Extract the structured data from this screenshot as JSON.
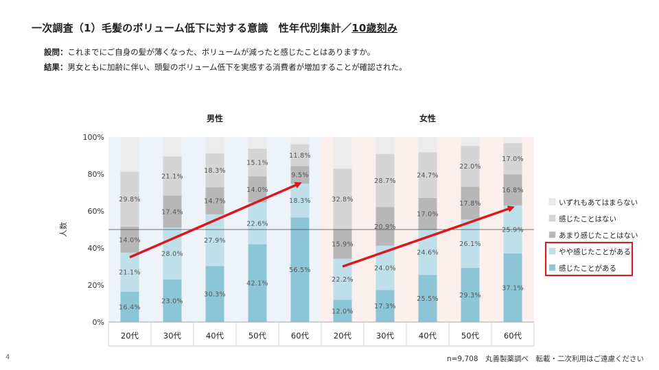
{
  "header": {
    "title_main": "一次調査（1）毛髪のボリューム低下に対する意識　性年代別集計／",
    "title_underlined": "10歳刻み"
  },
  "question": {
    "q_label": "設問：",
    "q_text": "これまでにご自身の髪が薄くなった、ボリュームが減ったと感じたことはありますか。",
    "r_label": "結果：",
    "r_text": "男女ともに加齢に伴い、頭髪のボリューム低下を実感する消費者が増加することが確認された。"
  },
  "footer": {
    "page_number": "4",
    "source": "n=9,708　丸善製薬調べ　転載・二次利用はご遠慮ください"
  },
  "colors": {
    "s1": "#8cc5d6",
    "s2": "#bfe0ea",
    "s3": "#b7b7b7",
    "s4": "#d5d5d5",
    "s5": "#ececec",
    "male_bg": "#edf3f9",
    "female_bg": "#fbf0ee",
    "arrow": "#d9191e",
    "highlight": "#c8232b"
  },
  "chart_data": {
    "type": "bar",
    "stacked": true,
    "y_axis_label": "人数",
    "ylim": [
      0,
      100
    ],
    "y_ticks": [
      "0%",
      "20%",
      "40%",
      "60%",
      "80%",
      "100%"
    ],
    "groups": [
      "男性",
      "女性"
    ],
    "categories": [
      "20代",
      "30代",
      "40代",
      "50代",
      "60代",
      "20代",
      "30代",
      "40代",
      "50代",
      "60代"
    ],
    "reference_line": 50,
    "series": [
      {
        "name": "感じたことがある",
        "values": [
          16.4,
          23.0,
          30.3,
          42.1,
          56.5,
          12.0,
          17.3,
          25.5,
          29.3,
          37.1
        ],
        "labels": [
          "16.4%",
          "23.0%",
          "30.3%",
          "42.1%",
          "56.5%",
          "12.0%",
          "17.3%",
          "25.5%",
          "29.3%",
          "37.1%"
        ]
      },
      {
        "name": "やや感じたことがある",
        "values": [
          21.1,
          28.0,
          27.9,
          22.6,
          18.3,
          22.2,
          24.0,
          24.6,
          26.1,
          25.9
        ],
        "labels": [
          "21.1%",
          "28.0%",
          "27.9%",
          "22.6%",
          "18.3%",
          "22.2%",
          "24.0%",
          "24.6%",
          "26.1%",
          "25.9%"
        ]
      },
      {
        "name": "あまり感じたことはない",
        "values": [
          14.0,
          17.4,
          14.7,
          14.0,
          9.5,
          15.9,
          20.9,
          17.0,
          17.8,
          16.8
        ],
        "labels": [
          "14.0%",
          "17.4%",
          "14.7%",
          "14.0%",
          "9.5%",
          "15.9%",
          "20.9%",
          "17.0%",
          "17.8%",
          "16.8%"
        ]
      },
      {
        "name": "感じたことはない",
        "values": [
          29.8,
          21.1,
          18.3,
          15.1,
          11.8,
          32.8,
          28.7,
          24.7,
          22.0,
          17.0
        ],
        "labels": [
          "29.8%",
          "21.1%",
          "18.3%",
          "15.1%",
          "11.8%",
          "32.8%",
          "28.7%",
          "24.7%",
          "22.0%",
          "17.0%"
        ]
      },
      {
        "name": "いずれもあてはまらない",
        "values": [
          18.7,
          10.5,
          8.8,
          6.2,
          3.9,
          17.1,
          9.1,
          8.2,
          4.8,
          3.2
        ],
        "labels": []
      }
    ],
    "legend_order": [
      "いずれもあてはまらない",
      "感じたことはない",
      "あまり感じたことはない",
      "やや感じたことがある",
      "感じたことがある"
    ],
    "highlighted_legend": [
      "やや感じたことがある",
      "感じたことがある"
    ],
    "trend_arrows": [
      {
        "group": "男性",
        "from_category": "20代",
        "from_value": 35,
        "to_category": "60代",
        "to_value": 75
      },
      {
        "group": "女性",
        "from_category": "20代",
        "from_value": 30,
        "to_category": "60代",
        "to_value": 62
      }
    ]
  }
}
